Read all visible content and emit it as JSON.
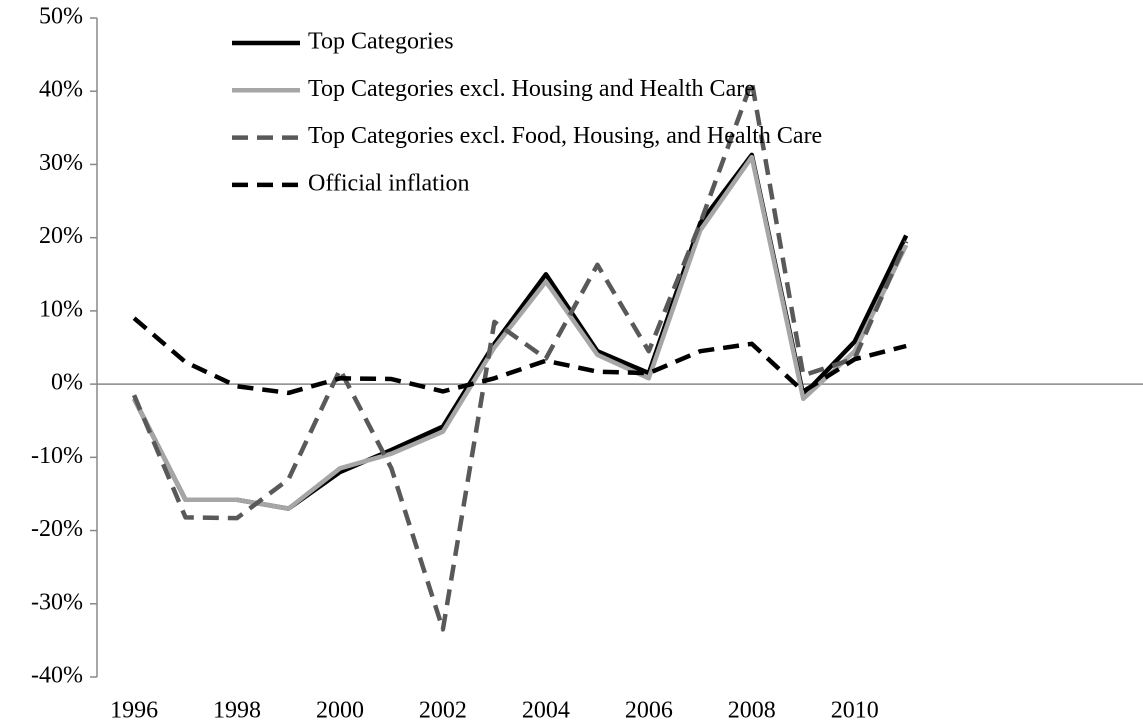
{
  "chart_data": {
    "type": "line",
    "x": [
      1996,
      1997,
      1998,
      1999,
      2000,
      2001,
      2002,
      2003,
      2004,
      2005,
      2006,
      2007,
      2008,
      2009,
      2010,
      2011
    ],
    "xlim": [
      1995.28,
      2015.6
    ],
    "xticks": [
      1996,
      1998,
      2000,
      2002,
      2004,
      2006,
      2008,
      2010
    ],
    "ylim": [
      -40,
      50
    ],
    "yticks": [
      {
        "value": -40,
        "label": "-40%"
      },
      {
        "value": -30,
        "label": "-30%"
      },
      {
        "value": -20,
        "label": "-20%"
      },
      {
        "value": -10,
        "label": "-10%"
      },
      {
        "value": 0,
        "label": "0%"
      },
      {
        "value": 10,
        "label": "10%"
      },
      {
        "value": 20,
        "label": "20%"
      },
      {
        "value": 30,
        "label": "30%"
      },
      {
        "value": 40,
        "label": "40%"
      },
      {
        "value": 50,
        "label": "50%"
      }
    ],
    "legend": "top-left",
    "series": [
      {
        "name": "Top Categories",
        "color": "#000000",
        "style": "solid",
        "values": [
          -2,
          -15.8,
          -15.8,
          -17,
          -12,
          -9,
          -5.8,
          5.5,
          15,
          4.5,
          1.5,
          22,
          31.3,
          -1.5,
          5.8,
          20.3
        ]
      },
      {
        "name": "Top Categories excl. Housing and Health Care",
        "color": "#a6a6a6",
        "style": "solid",
        "values": [
          -2,
          -15.8,
          -15.8,
          -17,
          -11.5,
          -9.5,
          -6.5,
          5,
          14,
          4,
          0.8,
          21,
          31,
          -2,
          4.5,
          19
        ]
      },
      {
        "name": "Top Categories excl. Food, Housing, and Health Care",
        "color": "#595959",
        "style": "dashed",
        "values": [
          -1.5,
          -18.2,
          -18.3,
          -13,
          2,
          -11.5,
          -33.5,
          8.5,
          3.5,
          16.3,
          4.5,
          22,
          41.3,
          1.2,
          3.5,
          19.5
        ]
      },
      {
        "name": "Official inflation",
        "color": "#000000",
        "style": "dashed",
        "values": [
          9,
          3,
          -0.3,
          -1.2,
          0.8,
          0.7,
          -1,
          0.8,
          3.2,
          1.7,
          1.5,
          4.5,
          5.5,
          -1,
          3.4,
          5.2
        ]
      }
    ]
  }
}
